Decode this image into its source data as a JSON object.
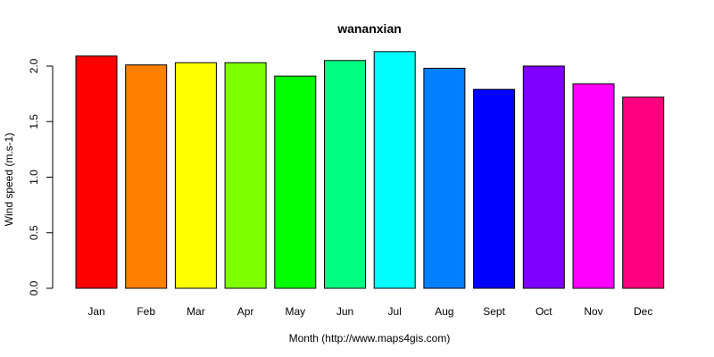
{
  "chart_data": {
    "type": "bar",
    "title": "wananxian",
    "xlabel": "Month (http://www.maps4gis.com)",
    "ylabel": "Wind speed (m.s-1)",
    "categories": [
      "Jan",
      "Feb",
      "Mar",
      "Apr",
      "May",
      "Jun",
      "Jul",
      "Aug",
      "Sept",
      "Oct",
      "Nov",
      "Dec"
    ],
    "values": [
      2.09,
      2.01,
      2.03,
      2.03,
      1.91,
      2.05,
      2.13,
      1.98,
      1.79,
      2.0,
      1.84,
      1.72
    ],
    "colors": [
      "#FF0000",
      "#FF8000",
      "#FFFF00",
      "#80FF00",
      "#00FF00",
      "#00FF80",
      "#00FFFF",
      "#0080FF",
      "#0000FF",
      "#8000FF",
      "#FF00FF",
      "#FF0080"
    ],
    "yticks": [
      "0.0",
      "0.5",
      "1.0",
      "1.5",
      "2.0"
    ],
    "ylim": [
      0,
      2.13
    ],
    "grid": false,
    "legend": "none"
  }
}
